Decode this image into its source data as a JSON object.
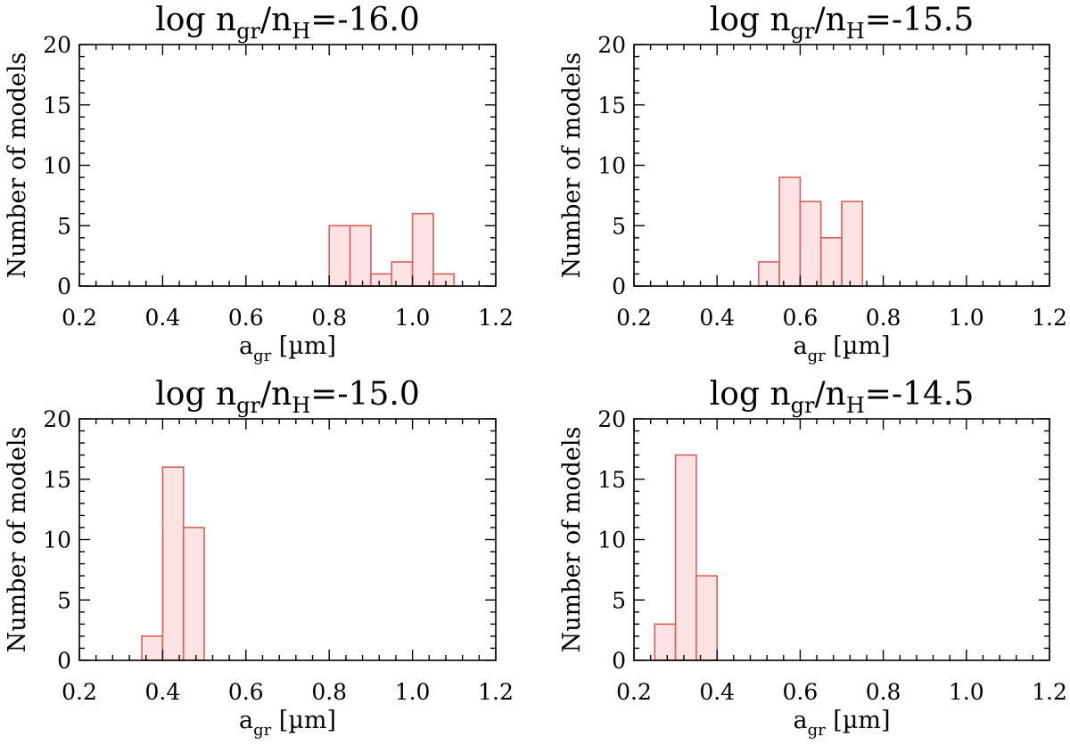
{
  "style": {
    "bar_fill": "#fde3e3",
    "bar_edge": "#d9605a",
    "axis_color": "#000000"
  },
  "chart_data": [
    {
      "type": "bar",
      "title": {
        "prefix": "log n",
        "sub": "gr",
        "mid": "/n",
        "sub2": "H",
        "suffix": "=-16.0"
      },
      "xlabel": {
        "main": "a",
        "sub": "gr",
        "unit": " [µm]"
      },
      "ylabel": "Number of models",
      "xlim": [
        0.2,
        1.2
      ],
      "ylim": [
        0,
        20
      ],
      "xticks": [
        "0.2",
        "0.4",
        "0.6",
        "0.8",
        "1.0",
        "1.2"
      ],
      "yticks": [
        "0",
        "5",
        "10",
        "15",
        "20"
      ],
      "bin_width": 0.05,
      "bins": [
        {
          "x": 0.8,
          "count": 5
        },
        {
          "x": 0.85,
          "count": 5
        },
        {
          "x": 0.9,
          "count": 1
        },
        {
          "x": 0.95,
          "count": 2
        },
        {
          "x": 1.0,
          "count": 6
        },
        {
          "x": 1.05,
          "count": 1
        }
      ]
    },
    {
      "type": "bar",
      "title": {
        "prefix": "log n",
        "sub": "gr",
        "mid": "/n",
        "sub2": "H",
        "suffix": "=-15.5"
      },
      "xlabel": {
        "main": "a",
        "sub": "gr",
        "unit": " [µm]"
      },
      "ylabel": "Number of models",
      "xlim": [
        0.2,
        1.2
      ],
      "ylim": [
        0,
        20
      ],
      "xticks": [
        "0.2",
        "0.4",
        "0.6",
        "0.8",
        "1.0",
        "1.2"
      ],
      "yticks": [
        "0",
        "5",
        "10",
        "15",
        "20"
      ],
      "bin_width": 0.05,
      "bins": [
        {
          "x": 0.5,
          "count": 2
        },
        {
          "x": 0.55,
          "count": 9
        },
        {
          "x": 0.6,
          "count": 7
        },
        {
          "x": 0.65,
          "count": 4
        },
        {
          "x": 0.7,
          "count": 7
        }
      ]
    },
    {
      "type": "bar",
      "title": {
        "prefix": "log n",
        "sub": "gr",
        "mid": "/n",
        "sub2": "H",
        "suffix": "=-15.0"
      },
      "xlabel": {
        "main": "a",
        "sub": "gr",
        "unit": " [µm]"
      },
      "ylabel": "Number of models",
      "xlim": [
        0.2,
        1.2
      ],
      "ylim": [
        0,
        20
      ],
      "xticks": [
        "0.2",
        "0.4",
        "0.6",
        "0.8",
        "1.0",
        "1.2"
      ],
      "yticks": [
        "0",
        "5",
        "10",
        "15",
        "20"
      ],
      "bin_width": 0.05,
      "bins": [
        {
          "x": 0.35,
          "count": 2
        },
        {
          "x": 0.4,
          "count": 16
        },
        {
          "x": 0.45,
          "count": 11
        }
      ]
    },
    {
      "type": "bar",
      "title": {
        "prefix": "log n",
        "sub": "gr",
        "mid": "/n",
        "sub2": "H",
        "suffix": "=-14.5"
      },
      "xlabel": {
        "main": "a",
        "sub": "gr",
        "unit": " [µm]"
      },
      "ylabel": "Number of models",
      "xlim": [
        0.2,
        1.2
      ],
      "ylim": [
        0,
        20
      ],
      "xticks": [
        "0.2",
        "0.4",
        "0.6",
        "0.8",
        "1.0",
        "1.2"
      ],
      "yticks": [
        "0",
        "5",
        "10",
        "15",
        "20"
      ],
      "bin_width": 0.05,
      "bins": [
        {
          "x": 0.25,
          "count": 3
        },
        {
          "x": 0.3,
          "count": 17
        },
        {
          "x": 0.35,
          "count": 7
        }
      ]
    }
  ]
}
